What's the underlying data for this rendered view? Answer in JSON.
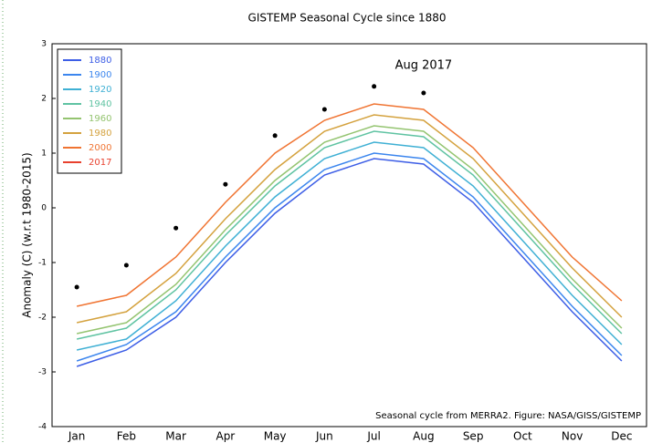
{
  "chart_data": {
    "type": "line",
    "title": "GISTEMP Seasonal Cycle since 1880",
    "y_label": "Anomaly (C) (w.r.t 1980-2015)",
    "annotation": "Aug 2017",
    "note": "Seasonal cycle from MERRA2. Figure: NASA/GISS/GISTEMP",
    "categories": [
      "Jan",
      "Feb",
      "Mar",
      "Apr",
      "May",
      "Jun",
      "Jul",
      "Aug",
      "Sep",
      "Oct",
      "Nov",
      "Dec"
    ],
    "series": [
      {
        "name": "1880",
        "color": "#3d5ee6",
        "values": [
          -2.9,
          -2.6,
          -2.0,
          -1.0,
          -0.1,
          0.6,
          0.9,
          0.8,
          0.1,
          -0.9,
          -1.9,
          -2.8
        ]
      },
      {
        "name": "1900",
        "color": "#3c86ee",
        "values": [
          -2.8,
          -2.5,
          -1.9,
          -0.9,
          0.0,
          0.7,
          1.0,
          0.9,
          0.2,
          -0.8,
          -1.8,
          -2.7
        ]
      },
      {
        "name": "1920",
        "color": "#3fb0d4",
        "values": [
          -2.6,
          -2.4,
          -1.7,
          -0.7,
          0.2,
          0.9,
          1.2,
          1.1,
          0.4,
          -0.6,
          -1.6,
          -2.5
        ]
      },
      {
        "name": "1940",
        "color": "#5fc3a2",
        "values": [
          -2.4,
          -2.2,
          -1.5,
          -0.5,
          0.4,
          1.1,
          1.4,
          1.3,
          0.6,
          -0.4,
          -1.4,
          -2.3
        ]
      },
      {
        "name": "1960",
        "color": "#94c470",
        "values": [
          -2.3,
          -2.1,
          -1.4,
          -0.4,
          0.5,
          1.2,
          1.5,
          1.4,
          0.7,
          -0.3,
          -1.3,
          -2.2
        ]
      },
      {
        "name": "1980",
        "color": "#d4a23e",
        "values": [
          -2.1,
          -1.9,
          -1.2,
          -0.2,
          0.7,
          1.4,
          1.7,
          1.6,
          0.9,
          -0.1,
          -1.1,
          -2.0
        ]
      },
      {
        "name": "2000",
        "color": "#f07432",
        "values": [
          -1.8,
          -1.6,
          -0.9,
          0.1,
          1.0,
          1.6,
          1.9,
          1.8,
          1.1,
          0.1,
          -0.9,
          -1.7
        ]
      },
      {
        "name": "2017",
        "color": "#e8412e",
        "values": [
          -1.45,
          -1.05,
          -0.37,
          0.43,
          1.32,
          1.8,
          2.22,
          2.1,
          null,
          null,
          null,
          null
        ]
      }
    ],
    "ylim": [
      -4,
      3
    ],
    "yticks": [
      -4,
      -3,
      -2,
      -1,
      0,
      1,
      2,
      3
    ],
    "legend": "upper left"
  }
}
